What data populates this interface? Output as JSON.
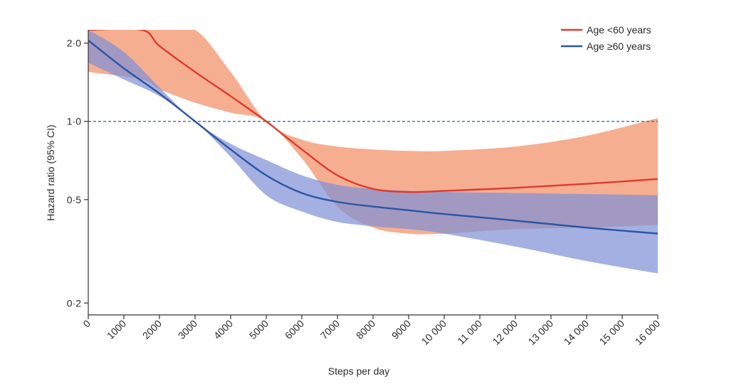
{
  "chart_data": {
    "type": "line",
    "xlabel": "Steps per day",
    "ylabel": "Hazard ratio (95% CI)",
    "xlim": [
      0,
      16000
    ],
    "ylim": [
      0.18,
      2.25
    ],
    "y_scale": "log",
    "xticks": [
      0,
      1000,
      2000,
      3000,
      4000,
      5000,
      6000,
      7000,
      8000,
      9000,
      10000,
      11000,
      12000,
      13000,
      14000,
      15000,
      16000
    ],
    "xtick_labels": [
      "0",
      "1000",
      "2000",
      "3000",
      "4000",
      "5000",
      "6000",
      "7000",
      "8000",
      "9000",
      "10 000",
      "11 000",
      "12 000",
      "13 000",
      "14 000",
      "15 000",
      "16 000"
    ],
    "yticks": [
      0.2,
      0.5,
      1.0,
      2.0
    ],
    "ytick_labels": [
      "0·2",
      "0·5",
      "1·0",
      "2·0"
    ],
    "reference_line": 1.0,
    "legend_position": "top-right",
    "grid": false,
    "series": [
      {
        "name": "Age <60 years",
        "color": "#e03a2b",
        "band_color": "#f4a07e",
        "x": [
          0,
          1500,
          2000,
          3000,
          4000,
          5000,
          6000,
          7000,
          8000,
          9000,
          10000,
          12000,
          14000,
          16000
        ],
        "y": [
          2.3,
          2.25,
          1.95,
          1.55,
          1.25,
          1.0,
          0.78,
          0.62,
          0.55,
          0.535,
          0.54,
          0.555,
          0.575,
          0.6
        ],
        "lower": [
          1.55,
          1.45,
          1.33,
          1.18,
          1.08,
          1.0,
          0.72,
          0.47,
          0.39,
          0.37,
          0.37,
          0.385,
          0.39,
          0.4
        ],
        "upper": [
          2.3,
          2.3,
          2.3,
          2.3,
          1.55,
          1.0,
          0.85,
          0.8,
          0.78,
          0.77,
          0.77,
          0.8,
          0.88,
          1.03
        ]
      },
      {
        "name": "Age ≥60 years",
        "color": "#2b56a5",
        "band_color": "#7f91d6",
        "x": [
          0,
          1000,
          2000,
          3000,
          4000,
          5000,
          6000,
          7000,
          8000,
          9000,
          10000,
          12000,
          14000,
          16000
        ],
        "y": [
          2.05,
          1.6,
          1.28,
          1.0,
          0.78,
          0.62,
          0.53,
          0.49,
          0.47,
          0.455,
          0.44,
          0.415,
          0.39,
          0.37
        ],
        "lower": [
          1.68,
          1.45,
          1.25,
          1.0,
          0.73,
          0.52,
          0.45,
          0.41,
          0.395,
          0.385,
          0.37,
          0.33,
          0.29,
          0.26
        ],
        "upper": [
          2.3,
          1.85,
          1.35,
          1.0,
          0.82,
          0.71,
          0.62,
          0.57,
          0.55,
          0.54,
          0.535,
          0.53,
          0.525,
          0.52
        ]
      }
    ]
  }
}
